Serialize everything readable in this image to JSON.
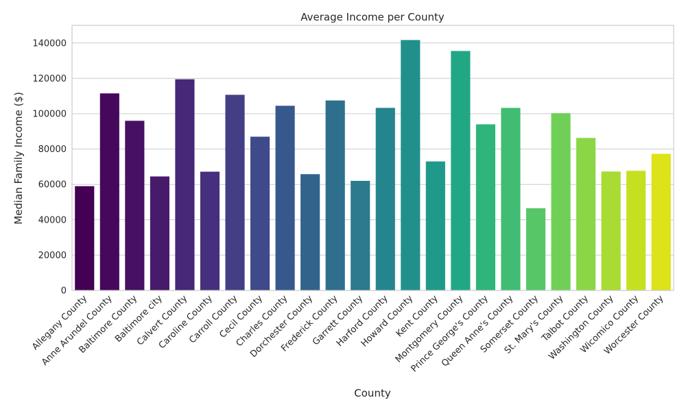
{
  "chart_data": {
    "type": "bar",
    "title": "Average Income per County",
    "xlabel": "County",
    "ylabel": "Median Family Income ($)",
    "ylim": [
      0,
      150000
    ],
    "yticks": [
      0,
      20000,
      40000,
      60000,
      80000,
      100000,
      120000,
      140000
    ],
    "grid": "horizontal",
    "categories": [
      "Allegany County",
      "Anne Arundel County",
      "Baltimore County",
      "Baltimore city",
      "Calvert County",
      "Caroline County",
      "Carroll County",
      "Cecil County",
      "Charles County",
      "Dorchester County",
      "Frederick County",
      "Garrett County",
      "Harford County",
      "Howard County",
      "Kent County",
      "Montgomery County",
      "Prince George's County",
      "Queen Anne's County",
      "Somerset County",
      "St. Mary's County",
      "Talbot County",
      "Washington County",
      "Wicomico County",
      "Worcester County"
    ],
    "values": [
      59000,
      111500,
      96000,
      64500,
      119500,
      67200,
      110700,
      87000,
      104500,
      65800,
      107500,
      62000,
      103300,
      141700,
      73000,
      135500,
      94000,
      103300,
      46500,
      100300,
      86300,
      67300,
      67700,
      77300
    ],
    "colors": [
      "#440154",
      "#46085c",
      "#471063",
      "#481a6c",
      "#472777",
      "#46307e",
      "#423f85",
      "#3e4a89",
      "#37588c",
      "#32638d",
      "#2e6f8e",
      "#2b7a8e",
      "#25858e",
      "#21908d",
      "#1f9a8a",
      "#22a785",
      "#2fb47c",
      "#40bd72",
      "#56c667",
      "#70cf57",
      "#8bd646",
      "#a8db34",
      "#c5e021",
      "#dde318"
    ]
  }
}
